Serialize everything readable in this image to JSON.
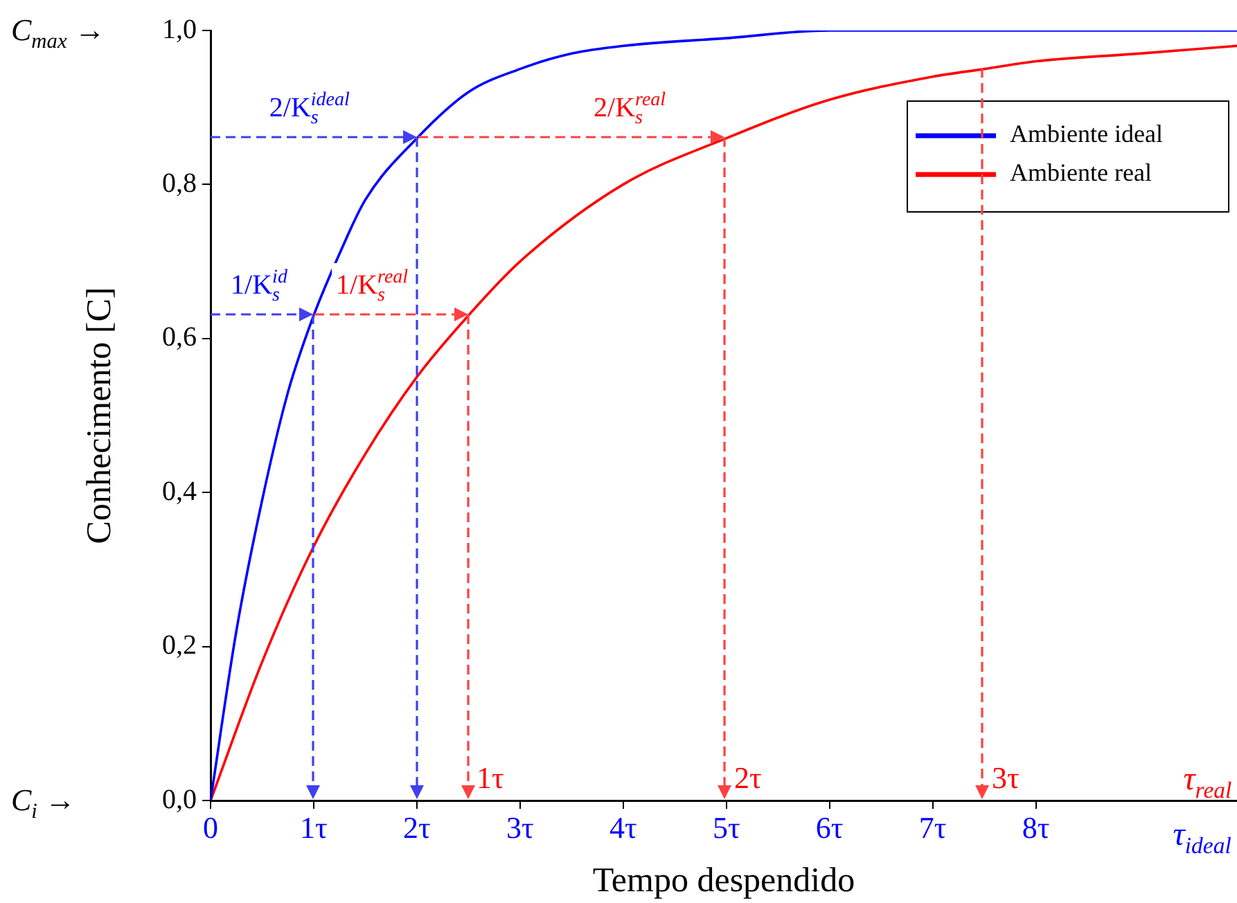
{
  "chart_data": {
    "type": "line",
    "xlabel": "Tempo despendido",
    "ylabel": "Conhecimento [C]",
    "xlim": [
      0,
      9.95
    ],
    "ylim": [
      0,
      1
    ],
    "xticks": [
      {
        "value": 0,
        "label": "0"
      },
      {
        "value": 1,
        "label": "1τ"
      },
      {
        "value": 2,
        "label": "2τ"
      },
      {
        "value": 3,
        "label": "3τ"
      },
      {
        "value": 4,
        "label": "4τ"
      },
      {
        "value": 5,
        "label": "5τ"
      },
      {
        "value": 6,
        "label": "6τ"
      },
      {
        "value": 7,
        "label": "7τ"
      },
      {
        "value": 8,
        "label": "8τ"
      }
    ],
    "yticks": [
      {
        "value": 0,
        "label": "0,0"
      },
      {
        "value": 0.2,
        "label": "0,2"
      },
      {
        "value": 0.4,
        "label": "0,4"
      },
      {
        "value": 0.6,
        "label": "0,6"
      },
      {
        "value": 0.8,
        "label": "0,8"
      },
      {
        "value": 1,
        "label": "1,0"
      }
    ],
    "grid": false,
    "legend": "top right",
    "marker": "none",
    "line_style": "solid",
    "series": [
      {
        "name": "Ambiente ideal",
        "color": "#0000ff",
        "x": [
          0,
          0.25,
          0.5,
          0.75,
          1,
          1.25,
          1.5,
          2,
          2.5,
          3,
          3.5,
          4,
          5,
          6,
          7,
          8,
          9,
          9.95
        ],
        "values": [
          0,
          0.22,
          0.39,
          0.53,
          0.63,
          0.71,
          0.78,
          0.86,
          0.92,
          0.95,
          0.97,
          0.98,
          0.99,
          1,
          1,
          1,
          1,
          1
        ]
      },
      {
        "name": "Ambiente real",
        "color": "#ff0000",
        "x": [
          0,
          0.5,
          1,
          1.5,
          2,
          2.5,
          3,
          4,
          5,
          6,
          7,
          7.5,
          8,
          9,
          9.95
        ],
        "values": [
          0,
          0.18,
          0.33,
          0.45,
          0.55,
          0.63,
          0.7,
          0.8,
          0.86,
          0.91,
          0.94,
          0.95,
          0.96,
          0.97,
          0.98
        ]
      }
    ],
    "annotations": [
      "C$_{max}$ →",
      "C$_{i}$ →",
      "1/K$_{s}$$^{id}$",
      "2/K$_{s}$$^{ideal}$",
      "1/K$_{s}$$^{real}$",
      "2/K$_{s}$$^{real}$",
      "1τ",
      "2τ",
      "3τ",
      "τ$_{real}$",
      "τ$_{ideal}$"
    ]
  }
}
